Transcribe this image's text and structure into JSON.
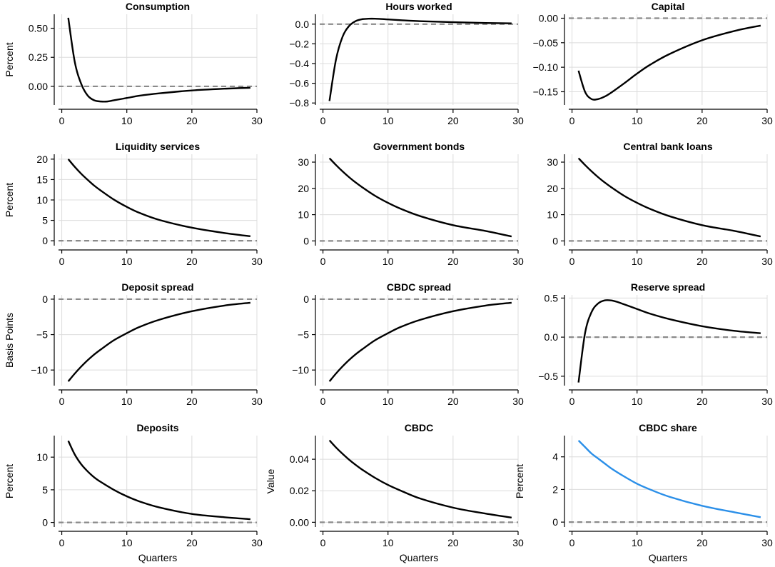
{
  "chart_data": [
    {
      "type": "line",
      "title": "Consumption",
      "xlabel": "",
      "ylabel": "Percent",
      "xlim": [
        -0.5,
        30
      ],
      "ylim": [
        -0.16,
        0.62
      ],
      "xticks": [
        0,
        10,
        20,
        30
      ],
      "yticks": [
        0.0,
        0.25,
        0.5
      ],
      "yticklabels": [
        "0.00",
        "0.25",
        "0.50"
      ],
      "grid": true,
      "baseline": 0,
      "color": "#000000",
      "x": [
        1,
        2,
        3,
        4,
        5,
        6,
        7,
        8,
        10,
        12,
        15,
        20,
        25,
        29
      ],
      "values": [
        0.59,
        0.21,
        0.02,
        -0.08,
        -0.12,
        -0.13,
        -0.13,
        -0.12,
        -0.1,
        -0.08,
        -0.06,
        -0.035,
        -0.02,
        -0.012
      ]
    },
    {
      "type": "line",
      "title": "Hours worked",
      "xlabel": "",
      "ylabel": "",
      "xlim": [
        -0.5,
        30
      ],
      "ylim": [
        -0.82,
        0.1
      ],
      "xticks": [
        0,
        10,
        20,
        30
      ],
      "yticks": [
        -0.8,
        -0.6,
        -0.4,
        -0.2,
        0.0
      ],
      "yticklabels": [
        "−0.8",
        "−0.6",
        "−0.4",
        "−0.2",
        "0.0"
      ],
      "grid": true,
      "baseline": 0,
      "color": "#000000",
      "x": [
        1,
        2,
        3,
        4,
        5,
        6,
        7,
        8,
        10,
        12,
        15,
        20,
        25,
        29
      ],
      "values": [
        -0.78,
        -0.36,
        -0.13,
        -0.02,
        0.03,
        0.05,
        0.055,
        0.055,
        0.048,
        0.04,
        0.03,
        0.02,
        0.012,
        0.008
      ]
    },
    {
      "type": "line",
      "title": "Capital",
      "xlabel": "",
      "ylabel": "",
      "xlim": [
        -0.5,
        30
      ],
      "ylim": [
        -0.177,
        0.008
      ],
      "xticks": [
        0,
        10,
        20,
        30
      ],
      "yticks": [
        -0.15,
        -0.1,
        -0.05,
        0.0
      ],
      "yticklabels": [
        "−0.15",
        "−0.10",
        "−0.05",
        "0.00"
      ],
      "grid": true,
      "baseline": 0,
      "color": "#000000",
      "x": [
        1,
        2,
        3,
        4,
        5,
        6,
        8,
        10,
        12,
        15,
        20,
        25,
        29
      ],
      "values": [
        -0.107,
        -0.15,
        -0.165,
        -0.165,
        -0.16,
        -0.152,
        -0.133,
        -0.113,
        -0.095,
        -0.073,
        -0.045,
        -0.026,
        -0.015
      ]
    },
    {
      "type": "line",
      "title": "Liquidity services",
      "xlabel": "",
      "ylabel": "Percent",
      "xlim": [
        -0.5,
        30
      ],
      "ylim": [
        -1.2,
        21.2
      ],
      "xticks": [
        0,
        10,
        20,
        30
      ],
      "yticks": [
        0,
        5,
        10,
        15,
        20
      ],
      "yticklabels": [
        "0",
        "5",
        "10",
        "15",
        "20"
      ],
      "grid": true,
      "baseline": 0,
      "color": "#000000",
      "x": [
        1,
        2,
        3,
        4,
        5,
        6,
        8,
        10,
        12,
        15,
        20,
        25,
        29
      ],
      "values": [
        20,
        18.1,
        16.4,
        14.9,
        13.5,
        12.3,
        10.1,
        8.3,
        6.8,
        5.1,
        3.2,
        1.9,
        1.1
      ]
    },
    {
      "type": "line",
      "title": "Government bonds",
      "xlabel": "",
      "ylabel": "",
      "xlim": [
        -0.5,
        30
      ],
      "ylim": [
        -1.8,
        33.0
      ],
      "xticks": [
        0,
        10,
        20,
        30
      ],
      "yticks": [
        0,
        10,
        20,
        30
      ],
      "yticklabels": [
        "0",
        "10",
        "20",
        "30"
      ],
      "grid": true,
      "baseline": 0,
      "color": "#000000",
      "x": [
        1,
        2,
        3,
        4,
        5,
        6,
        8,
        10,
        12,
        15,
        20,
        25,
        29
      ],
      "values": [
        31.5,
        28.9,
        26.5,
        24.3,
        22.3,
        20.5,
        17.2,
        14.5,
        12.2,
        9.4,
        6,
        3.8,
        1.7
      ]
    },
    {
      "type": "line",
      "title": "Central bank loans",
      "xlabel": "",
      "ylabel": "",
      "xlim": [
        -0.5,
        30
      ],
      "ylim": [
        -1.8,
        33.0
      ],
      "xticks": [
        0,
        10,
        20,
        30
      ],
      "yticks": [
        0,
        10,
        20,
        30
      ],
      "yticklabels": [
        "0",
        "10",
        "20",
        "30"
      ],
      "grid": true,
      "baseline": 0,
      "color": "#000000",
      "x": [
        1,
        2,
        3,
        4,
        5,
        6,
        8,
        10,
        12,
        15,
        20,
        25,
        29
      ],
      "values": [
        31.5,
        28.9,
        26.5,
        24.3,
        22.3,
        20.5,
        17.2,
        14.5,
        12.2,
        9.4,
        6,
        3.8,
        1.7
      ]
    },
    {
      "type": "line",
      "title": "Deposit spread",
      "xlabel": "",
      "ylabel": "Basis Points",
      "xlim": [
        -0.5,
        30
      ],
      "ylim": [
        -12.2,
        0.6
      ],
      "xticks": [
        0,
        10,
        20,
        30
      ],
      "yticks": [
        -10,
        -5,
        0
      ],
      "yticklabels": [
        "−10",
        "−5",
        "0"
      ],
      "grid": true,
      "baseline": 0,
      "color": "#000000",
      "x": [
        1,
        2,
        3,
        4,
        5,
        6,
        8,
        10,
        12,
        15,
        20,
        25,
        29
      ],
      "values": [
        -11.6,
        -10.5,
        -9.5,
        -8.6,
        -7.8,
        -7.1,
        -5.8,
        -4.8,
        -3.9,
        -2.9,
        -1.7,
        -0.9,
        -0.5
      ]
    },
    {
      "type": "line",
      "title": "CBDC spread",
      "xlabel": "",
      "ylabel": "",
      "xlim": [
        -0.5,
        30
      ],
      "ylim": [
        -12.2,
        0.6
      ],
      "xticks": [
        0,
        10,
        20,
        30
      ],
      "yticks": [
        -10,
        -5,
        0
      ],
      "yticklabels": [
        "−10",
        "−5",
        "0"
      ],
      "grid": true,
      "baseline": 0,
      "color": "#000000",
      "x": [
        1,
        2,
        3,
        4,
        5,
        6,
        8,
        10,
        12,
        15,
        20,
        25,
        29
      ],
      "values": [
        -11.6,
        -10.5,
        -9.5,
        -8.6,
        -7.8,
        -7.1,
        -5.8,
        -4.8,
        -3.9,
        -2.9,
        -1.7,
        -0.9,
        -0.5
      ]
    },
    {
      "type": "line",
      "title": "Reserve spread",
      "xlabel": "",
      "ylabel": "",
      "xlim": [
        -0.5,
        30
      ],
      "ylim": [
        -0.62,
        0.54
      ],
      "xticks": [
        0,
        10,
        20,
        30
      ],
      "yticks": [
        -0.5,
        0.0,
        0.5
      ],
      "yticklabels": [
        "−0.5",
        "0.0",
        "0.5"
      ],
      "grid": true,
      "baseline": 0,
      "color": "#000000",
      "x": [
        1,
        2,
        3,
        4,
        5,
        6,
        7,
        8,
        10,
        12,
        15,
        20,
        25,
        29
      ],
      "values": [
        -0.58,
        0.05,
        0.32,
        0.43,
        0.47,
        0.47,
        0.45,
        0.42,
        0.36,
        0.3,
        0.23,
        0.14,
        0.08,
        0.05
      ]
    },
    {
      "type": "line",
      "title": "Deposits",
      "xlabel": "Quarters",
      "ylabel": "Percent",
      "xlim": [
        -0.5,
        30
      ],
      "ylim": [
        -0.7,
        13.3
      ],
      "xticks": [
        0,
        10,
        20,
        30
      ],
      "yticks": [
        0,
        5,
        10
      ],
      "yticklabels": [
        "0",
        "5",
        "10"
      ],
      "grid": true,
      "baseline": 0,
      "color": "#000000",
      "x": [
        1,
        2,
        3,
        4,
        5,
        6,
        8,
        10,
        12,
        15,
        20,
        25,
        29
      ],
      "values": [
        12.5,
        10.4,
        8.9,
        7.8,
        6.9,
        6.2,
        5,
        4,
        3.2,
        2.3,
        1.3,
        0.8,
        0.5
      ]
    },
    {
      "type": "line",
      "title": "CBDC",
      "xlabel": "Quarters",
      "ylabel": "Value",
      "xlim": [
        -0.5,
        30
      ],
      "ylim": [
        -0.003,
        0.055
      ],
      "xticks": [
        0,
        10,
        20,
        30
      ],
      "yticks": [
        0.0,
        0.02,
        0.04
      ],
      "yticklabels": [
        "0.00",
        "0.02",
        "0.04"
      ],
      "grid": true,
      "baseline": 0,
      "color": "#000000",
      "x": [
        1,
        2,
        3,
        4,
        5,
        6,
        8,
        10,
        12,
        15,
        20,
        25,
        29
      ],
      "values": [
        0.052,
        0.0475,
        0.0435,
        0.0398,
        0.0365,
        0.0335,
        0.0282,
        0.0237,
        0.02,
        0.015,
        0.0093,
        0.0055,
        0.003
      ]
    },
    {
      "type": "line",
      "title": "CBDC share",
      "xlabel": "Quarters",
      "ylabel": "Percent",
      "xlim": [
        -0.5,
        30
      ],
      "ylim": [
        -0.3,
        5.3
      ],
      "xticks": [
        0,
        10,
        20,
        30
      ],
      "yticks": [
        0,
        2,
        4
      ],
      "yticklabels": [
        "0",
        "2",
        "4"
      ],
      "grid": true,
      "baseline": 0,
      "color": "#2b8fe8",
      "x": [
        1,
        2,
        3,
        4,
        5,
        6,
        8,
        10,
        12,
        15,
        20,
        25,
        29
      ],
      "values": [
        5.0,
        4.6,
        4.2,
        3.9,
        3.6,
        3.3,
        2.8,
        2.35,
        2.0,
        1.55,
        1.0,
        0.6,
        0.3
      ]
    }
  ]
}
